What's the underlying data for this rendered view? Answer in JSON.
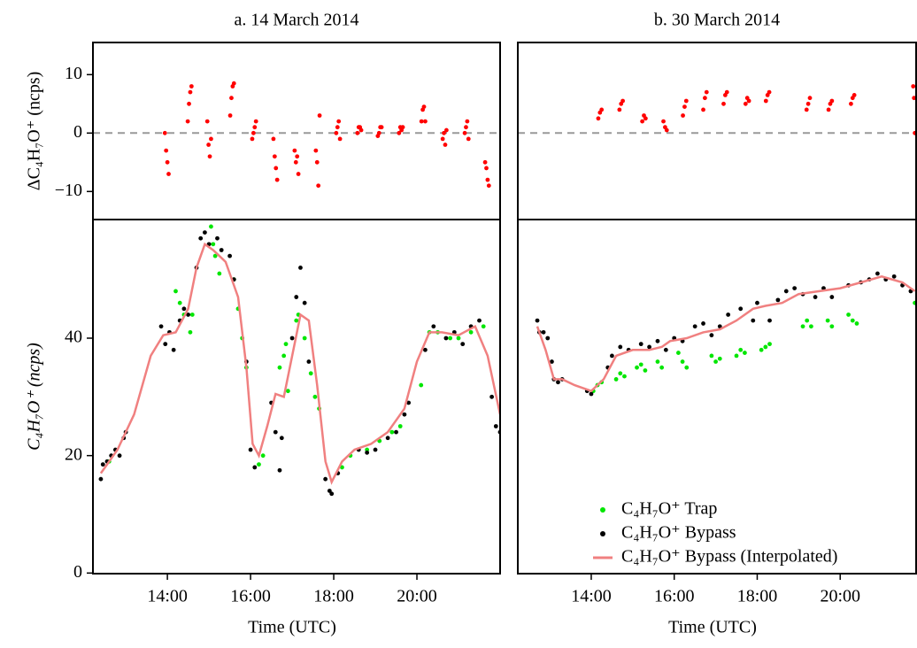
{
  "chart_data": [
    {
      "type": "scatter",
      "title": "a. 14 March 2014",
      "ylabel": "ΔC₄H₇O⁺ (ncps)",
      "xlim": [
        12.21,
        22.0
      ],
      "ylim": [
        -14.8,
        15.5
      ],
      "yticks": [
        10,
        0,
        {
          "value": -10,
          "label": "−10"
        }
      ],
      "reference_line": 0,
      "series": [
        {
          "color": "#ff0000",
          "x": [
            13.94,
            13.97,
            14.0,
            14.03,
            14.49,
            14.52,
            14.55,
            14.58,
            14.96,
            14.99,
            15.02,
            15.05,
            15.51,
            15.54,
            15.57,
            15.6,
            16.04,
            16.07,
            16.1,
            16.13,
            16.55,
            16.58,
            16.61,
            16.64,
            17.06,
            17.09,
            17.12,
            17.15,
            17.57,
            17.6,
            17.63,
            17.66,
            18.06,
            18.09,
            18.12,
            18.15,
            18.57,
            18.6,
            18.63,
            18.66,
            19.06,
            19.09,
            19.12,
            19.15,
            19.57,
            19.6,
            19.63,
            19.66,
            20.11,
            20.14,
            20.17,
            20.2,
            20.62,
            20.65,
            20.68,
            20.71,
            21.15,
            21.18,
            21.21,
            21.24,
            21.64,
            21.67,
            21.7,
            21.73
          ],
          "values": [
            0,
            -3,
            -5,
            -7,
            2,
            5,
            7,
            8,
            2,
            -2,
            -4,
            -1,
            3,
            6,
            8,
            8.5,
            -1,
            0,
            1,
            2,
            -1,
            -4,
            -6,
            -8,
            -3,
            -5,
            -4,
            -7,
            -3,
            -5,
            -9,
            3,
            0,
            1,
            2,
            -1,
            0,
            1,
            1,
            0.5,
            -0.5,
            0,
            1,
            1,
            0,
            1,
            0.5,
            1,
            2,
            4,
            4.5,
            2,
            -1,
            0,
            -2,
            0.5,
            0,
            1,
            2,
            -1,
            -5,
            -6,
            -8,
            -9
          ]
        }
      ]
    },
    {
      "type": "scatter",
      "title": "b. 30 March 2014",
      "xlim": [
        12.23,
        21.83
      ],
      "ylim": [
        -14.8,
        15.5
      ],
      "reference_line": 0,
      "series": [
        {
          "color": "#ff0000",
          "x": [
            14.17,
            14.21,
            14.25,
            14.68,
            14.72,
            14.76,
            15.23,
            15.27,
            15.31,
            15.74,
            15.78,
            15.82,
            16.21,
            16.25,
            16.29,
            16.7,
            16.74,
            16.78,
            17.19,
            17.23,
            17.27,
            17.72,
            17.76,
            17.8,
            18.21,
            18.25,
            18.29,
            19.19,
            19.23,
            19.27,
            19.72,
            19.76,
            19.8,
            20.26,
            20.3,
            20.34,
            21.76,
            21.78,
            21.8
          ],
          "values": [
            2.5,
            3.5,
            4,
            4,
            5,
            5.5,
            2,
            3,
            2.5,
            2,
            1,
            0.5,
            3,
            4.5,
            5.5,
            4,
            6,
            7,
            5,
            6.5,
            7,
            5,
            6,
            5.5,
            5.5,
            6.5,
            7,
            4,
            5,
            6,
            4,
            5,
            5.5,
            5,
            6,
            6.5,
            8,
            6,
            0
          ]
        }
      ]
    },
    {
      "type": "scatter",
      "ylabel": "C₄H₇O⁺ (ncps)",
      "xlabel": "Time (UTC)",
      "xlim": [
        12.21,
        22.0
      ],
      "ylim": [
        -0.1,
        60.2
      ],
      "yticks": [
        0,
        20,
        40
      ],
      "xticks": [
        {
          "value": 14,
          "label": "14:00"
        },
        {
          "value": 16,
          "label": "16:00"
        },
        {
          "value": 18,
          "label": "18:00"
        },
        {
          "value": 20,
          "label": "20:00"
        }
      ],
      "series": [
        {
          "type": "scatter",
          "color": "#00e600",
          "x": [
            12.6,
            14.2,
            14.3,
            14.4,
            14.55,
            14.6,
            15.05,
            15.1,
            15.15,
            15.25,
            15.6,
            15.7,
            15.8,
            15.9,
            16.2,
            16.3,
            16.7,
            16.8,
            16.85,
            16.9,
            17.1,
            17.15,
            17.3,
            17.45,
            17.55,
            17.65,
            18.2,
            18.4,
            18.8,
            19.1,
            19.4,
            19.6,
            20.1,
            20.3,
            20.5,
            20.8,
            21.0,
            21.3,
            21.6
          ],
          "values": [
            19,
            48,
            46,
            44,
            41,
            44,
            59,
            56,
            54,
            51,
            50,
            45,
            40,
            35,
            18.5,
            20,
            35,
            37,
            39,
            31,
            43,
            44,
            40,
            34,
            30,
            28,
            18,
            20,
            21,
            22.5,
            24,
            25,
            32,
            41,
            41,
            40,
            40,
            41,
            42
          ]
        },
        {
          "type": "scatter",
          "color": "#000000",
          "x": [
            12.4,
            12.45,
            12.55,
            12.65,
            12.75,
            12.85,
            12.95,
            13.0,
            13.85,
            13.95,
            14.05,
            14.15,
            14.3,
            14.4,
            14.5,
            14.7,
            14.8,
            14.9,
            15.0,
            15.2,
            15.3,
            15.5,
            15.6,
            15.9,
            16.0,
            16.1,
            16.5,
            16.6,
            16.7,
            16.75,
            17.0,
            17.1,
            17.2,
            17.3,
            17.4,
            17.8,
            17.9,
            17.95,
            18.1,
            18.6,
            18.8,
            19.0,
            19.3,
            19.5,
            19.7,
            19.8,
            20.2,
            20.4,
            20.7,
            20.9,
            21.1,
            21.3,
            21.5,
            21.8,
            21.9,
            22.0
          ],
          "values": [
            16,
            18.5,
            19,
            20,
            21,
            20,
            23,
            24,
            42,
            39,
            41,
            38,
            43,
            45,
            44,
            52,
            57,
            58,
            56,
            57,
            55,
            54,
            50,
            36,
            21,
            18,
            29,
            24,
            17.5,
            23,
            40,
            47,
            52,
            46,
            36,
            16,
            14,
            13.5,
            17,
            21,
            20.5,
            21,
            23,
            24,
            27,
            29,
            38,
            42,
            40,
            41,
            39,
            42,
            43,
            30,
            25,
            24
          ]
        },
        {
          "type": "line",
          "color": "#f08080",
          "x": [
            12.4,
            12.8,
            13.2,
            13.6,
            13.9,
            14.2,
            14.5,
            14.7,
            14.9,
            15.1,
            15.4,
            15.7,
            15.9,
            16.05,
            16.2,
            16.4,
            16.6,
            16.8,
            17.0,
            17.2,
            17.4,
            17.6,
            17.8,
            17.95,
            18.2,
            18.5,
            18.9,
            19.3,
            19.7,
            20.0,
            20.3,
            20.6,
            21.0,
            21.4,
            21.7,
            22.0
          ],
          "values": [
            17,
            21,
            27,
            37,
            40.5,
            41,
            45,
            52,
            56,
            55,
            53,
            47,
            35,
            22,
            20,
            25,
            30.5,
            30,
            37,
            44,
            43,
            32,
            19,
            15.5,
            19,
            21,
            22,
            24,
            28,
            36,
            41,
            41,
            40.5,
            42,
            37,
            27
          ]
        }
      ]
    },
    {
      "type": "scatter",
      "xlabel": "Time (UTC)",
      "legend": "lower right",
      "xlim": [
        12.23,
        21.83
      ],
      "ylim": [
        -0.1,
        60.2
      ],
      "xticks": [
        {
          "value": 14,
          "label": "14:00"
        },
        {
          "value": 16,
          "label": "16:00"
        },
        {
          "value": 18,
          "label": "18:00"
        },
        {
          "value": 20,
          "label": "20:00"
        }
      ],
      "series": [
        {
          "type": "scatter",
          "name": "C₄H₇O⁺ Trap",
          "color": "#00e600",
          "x": [
            14.05,
            14.15,
            14.25,
            14.6,
            14.7,
            14.8,
            15.1,
            15.2,
            15.3,
            15.6,
            15.7,
            16.1,
            16.2,
            16.3,
            16.9,
            17.0,
            17.1,
            17.5,
            17.6,
            17.7,
            18.1,
            18.2,
            18.3,
            19.1,
            19.2,
            19.3,
            19.7,
            19.8,
            20.2,
            20.3,
            20.4,
            21.8
          ],
          "values": [
            31,
            32,
            32.5,
            33,
            34,
            33.5,
            35,
            35.5,
            34.5,
            36,
            35,
            37.5,
            36,
            35,
            37,
            36,
            36.5,
            37,
            38,
            37.5,
            38,
            38.5,
            39,
            42,
            43,
            42,
            43,
            42,
            44,
            43,
            42.5,
            46
          ]
        },
        {
          "type": "scatter",
          "name": "C₄H₇O⁺ Bypass",
          "color": "#000000",
          "x": [
            12.7,
            12.75,
            12.85,
            12.95,
            13.05,
            13.1,
            13.2,
            13.3,
            13.9,
            14.0,
            14.4,
            14.5,
            14.7,
            14.9,
            15.2,
            15.4,
            15.6,
            15.8,
            16.0,
            16.2,
            16.5,
            16.7,
            16.9,
            17.1,
            17.3,
            17.6,
            17.9,
            18.0,
            18.3,
            18.5,
            18.7,
            18.9,
            19.1,
            19.4,
            19.6,
            19.8,
            20.2,
            20.5,
            20.7,
            20.9,
            21.1,
            21.3,
            21.5,
            21.7
          ],
          "values": [
            43,
            41,
            41,
            40,
            36,
            33,
            32.5,
            33,
            31,
            30.5,
            35,
            37,
            38.5,
            38,
            39,
            38.5,
            39.5,
            38,
            40,
            39.5,
            42,
            42.5,
            40.5,
            42,
            44,
            45,
            43,
            46,
            43,
            46.5,
            48,
            48.5,
            47.5,
            47,
            48.5,
            47,
            49,
            49.5,
            50,
            51,
            50,
            50.5,
            49,
            48
          ]
        },
        {
          "type": "line",
          "name": "C₄H₇O⁺ Bypass (Interpolated)",
          "color": "#f08080",
          "x": [
            12.7,
            12.9,
            13.1,
            13.3,
            13.6,
            14.0,
            14.3,
            14.6,
            15.0,
            15.4,
            15.7,
            15.9,
            16.3,
            16.7,
            17.1,
            17.5,
            17.9,
            18.2,
            18.6,
            19.0,
            19.5,
            20.0,
            20.5,
            21.0,
            21.5,
            21.8
          ],
          "values": [
            42,
            38,
            33,
            33,
            32,
            31,
            33,
            37,
            38,
            38,
            38.5,
            39.5,
            40,
            41,
            41.5,
            43,
            45,
            45.5,
            46,
            47.5,
            48,
            48.5,
            49.5,
            50.5,
            49.5,
            48
          ]
        }
      ]
    }
  ]
}
